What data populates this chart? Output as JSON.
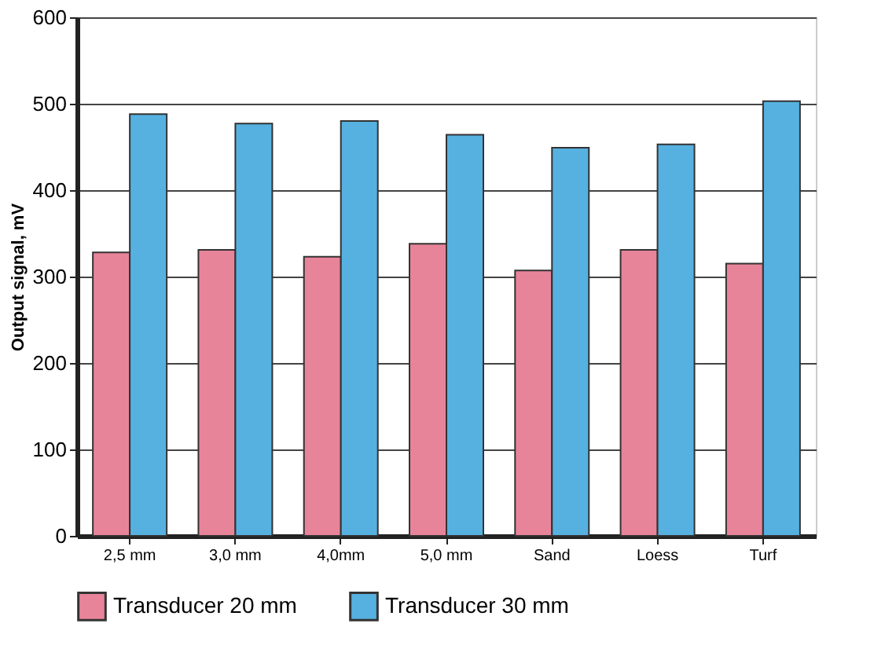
{
  "chart_data": {
    "type": "bar",
    "ylabel": "Output signal, mV",
    "categories": [
      "2,5 mm",
      "3,0 mm",
      "4,0mm",
      "5,0 mm",
      "Sand",
      "Loess",
      "Turf"
    ],
    "series": [
      {
        "name": "Transducer 20 mm",
        "color": "#e8849a",
        "values": [
          328,
          331,
          323,
          338,
          307,
          331,
          315
        ]
      },
      {
        "name": "Transducer 30 mm",
        "color": "#56b1e0",
        "values": [
          488,
          477,
          480,
          464,
          449,
          453,
          503
        ]
      }
    ],
    "ylim": [
      0,
      600
    ],
    "yticks": [
      0,
      100,
      200,
      300,
      400,
      500,
      600
    ],
    "grid": "y",
    "legend": "bottom"
  }
}
